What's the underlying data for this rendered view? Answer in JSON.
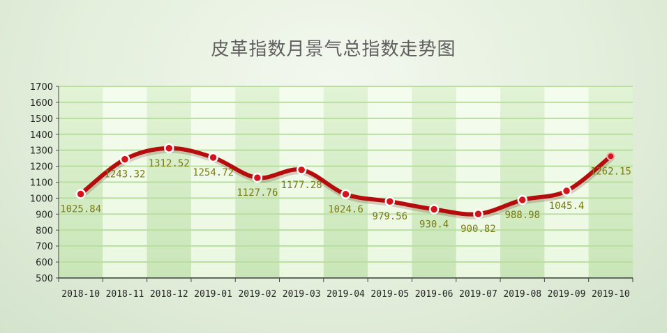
{
  "chart_data": {
    "type": "line",
    "title": "皮革指数月景气总指数走势图",
    "xlabel": "",
    "ylabel": "",
    "categories": [
      "2018-10",
      "2018-11",
      "2018-12",
      "2019-01",
      "2019-02",
      "2019-03",
      "2019-04",
      "2019-05",
      "2019-06",
      "2019-07",
      "2019-08",
      "2019-09",
      "2019-10"
    ],
    "series": [
      {
        "values": [
          1025.84,
          1243.32,
          1312.52,
          1254.72,
          1127.76,
          1177.28,
          1024.6,
          979.56,
          930.4,
          900.82,
          988.98,
          1045.4,
          1262.15
        ],
        "labels": [
          "1025.84",
          "1243.32",
          "1312.52",
          "1254.72",
          "1127.76",
          "1177.28",
          "1024.6",
          "979.56",
          "930.4",
          "900.82",
          "988.98",
          "1045.4",
          "1262.15"
        ]
      }
    ],
    "ylim": [
      500,
      1700
    ],
    "yticks": [
      500,
      600,
      700,
      800,
      900,
      1000,
      1100,
      1200,
      1300,
      1400,
      1500,
      1600,
      1700
    ],
    "grid": true,
    "legend": "none",
    "colors": {
      "line": "#b50d0d",
      "marker_fill": "#d3151b",
      "marker_stroke": "#ffffff",
      "label": "#7a7a12",
      "band_dark": "#c9e6b8",
      "band_light": "#eaf8e0",
      "gridline": "#b8dea0",
      "axis": "#444444"
    }
  }
}
